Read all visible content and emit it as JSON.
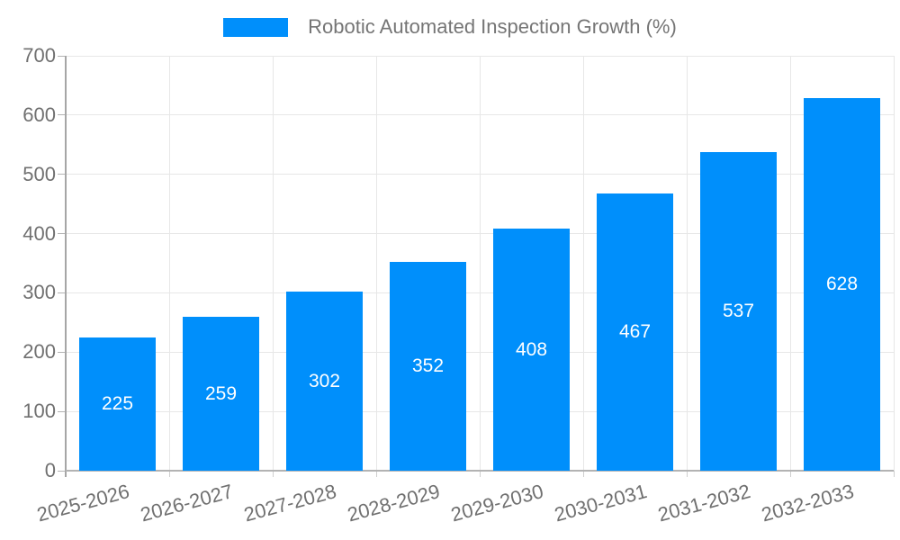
{
  "chart_data": {
    "type": "bar",
    "title": "",
    "legend": [
      {
        "label": "Robotic Automated Inspection Growth (%)",
        "color": "#008FFB"
      }
    ],
    "legend_position": "top",
    "categories": [
      "2025-2026",
      "2026-2027",
      "2027-2028",
      "2028-2029",
      "2029-2030",
      "2030-2031",
      "2031-2032",
      "2032-2033"
    ],
    "series": [
      {
        "name": "Robotic Automated Inspection Growth (%)",
        "values": [
          225,
          259,
          302,
          352,
          408,
          467,
          537,
          628
        ]
      }
    ],
    "data_labels": [
      "225",
      "259",
      "302",
      "352",
      "408",
      "467",
      "537",
      "628"
    ],
    "xlabel": "",
    "ylabel": "",
    "y_ticks": [
      0,
      100,
      200,
      300,
      400,
      500,
      600,
      700
    ],
    "ylim": [
      0,
      700
    ],
    "grid": true,
    "x_label_rotation_deg": -15,
    "colors": {
      "bar": "#008FFB",
      "axis_label": "#707070",
      "legend_text": "#757575",
      "gridline": "#e7e7e7",
      "axis_line": "#a8a8a8",
      "data_label": "#ffffff",
      "background": "#ffffff"
    }
  }
}
